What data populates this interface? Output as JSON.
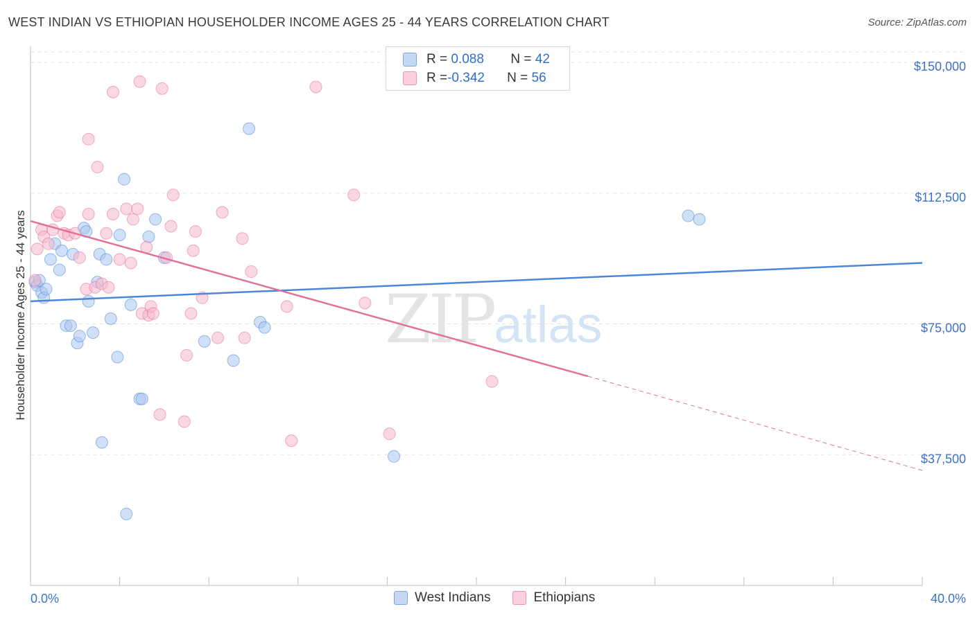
{
  "title": "WEST INDIAN VS ETHIOPIAN HOUSEHOLDER INCOME AGES 25 - 44 YEARS CORRELATION CHART",
  "source": "Source: ZipAtlas.com",
  "watermark": {
    "zip": "ZIP",
    "atlas": "atlas"
  },
  "legend": {
    "rows": [
      {
        "r_label": "R = ",
        "r_value": "0.088",
        "n_label": "N = ",
        "n_value": "42",
        "color": "#a9c7ef"
      },
      {
        "r_label": "R = ",
        "r_value": "-0.342",
        "n_label": "N = ",
        "n_value": "56",
        "color": "#f5b8cc"
      }
    ]
  },
  "bottom_legend": [
    "West Indians",
    "Ethiopians"
  ],
  "chart_data": {
    "type": "scatter",
    "ylabel": "Householder Income Ages 25 - 44 years",
    "x_tick_labels": [
      "0.0%",
      "40.0%"
    ],
    "y_tick_labels": [
      "$150,000",
      "$112,500",
      "$75,000",
      "$37,500"
    ],
    "y_ticks": [
      150000,
      112500,
      75000,
      37500
    ],
    "xlim": [
      0,
      40
    ],
    "ylim": [
      0,
      153000
    ],
    "grid": true,
    "series": [
      {
        "name": "West Indians",
        "color": "#4a86d8",
        "fill": "#a9c7ef",
        "trend": {
          "x": [
            0,
            40
          ],
          "y": [
            81500,
            92500
          ],
          "dashed_from": null
        },
        "points": [
          [
            0.2,
            87000
          ],
          [
            0.3,
            86000
          ],
          [
            0.4,
            87500
          ],
          [
            0.5,
            84000
          ],
          [
            0.6,
            82500
          ],
          [
            0.7,
            85000
          ],
          [
            0.9,
            93500
          ],
          [
            1.1,
            98000
          ],
          [
            1.3,
            90500
          ],
          [
            1.4,
            96000
          ],
          [
            1.6,
            74500
          ],
          [
            1.8,
            74500
          ],
          [
            1.9,
            95000
          ],
          [
            2.1,
            69500
          ],
          [
            2.2,
            71500
          ],
          [
            2.4,
            102500
          ],
          [
            2.5,
            101500
          ],
          [
            2.6,
            81500
          ],
          [
            2.8,
            72500
          ],
          [
            3.0,
            87000
          ],
          [
            3.1,
            95000
          ],
          [
            3.2,
            41000
          ],
          [
            3.4,
            93500
          ],
          [
            3.6,
            76500
          ],
          [
            3.9,
            65500
          ],
          [
            4.0,
            100500
          ],
          [
            4.2,
            116500
          ],
          [
            4.3,
            20500
          ],
          [
            4.5,
            80500
          ],
          [
            4.9,
            53500
          ],
          [
            5.0,
            53500
          ],
          [
            5.3,
            100000
          ],
          [
            5.6,
            105000
          ],
          [
            6.0,
            94000
          ],
          [
            7.8,
            70000
          ],
          [
            9.1,
            64500
          ],
          [
            9.8,
            131000
          ],
          [
            10.3,
            75500
          ],
          [
            10.5,
            74000
          ],
          [
            16.3,
            37000
          ],
          [
            29.5,
            106000
          ],
          [
            30.0,
            105000
          ]
        ]
      },
      {
        "name": "Ethiopians",
        "color": "#e0709a",
        "fill": "#f5b8cc",
        "trend": {
          "x": [
            0,
            25,
            40
          ],
          "y": [
            104500,
            60000,
            33000
          ],
          "dashed_from": 25
        },
        "points": [
          [
            0.2,
            87500
          ],
          [
            0.3,
            96500
          ],
          [
            0.5,
            102000
          ],
          [
            0.6,
            100000
          ],
          [
            0.8,
            98000
          ],
          [
            1.0,
            102000
          ],
          [
            1.2,
            106000
          ],
          [
            1.3,
            107000
          ],
          [
            1.5,
            101000
          ],
          [
            1.7,
            100500
          ],
          [
            2.0,
            101000
          ],
          [
            2.2,
            94000
          ],
          [
            2.5,
            85000
          ],
          [
            2.6,
            106500
          ],
          [
            2.6,
            128000
          ],
          [
            2.9,
            85500
          ],
          [
            3.0,
            120000
          ],
          [
            3.2,
            86500
          ],
          [
            3.4,
            101000
          ],
          [
            3.5,
            85500
          ],
          [
            3.7,
            106500
          ],
          [
            3.7,
            141500
          ],
          [
            4.0,
            93500
          ],
          [
            4.3,
            108000
          ],
          [
            4.5,
            92500
          ],
          [
            4.6,
            105000
          ],
          [
            4.8,
            108000
          ],
          [
            4.9,
            144500
          ],
          [
            5.0,
            78000
          ],
          [
            5.2,
            97000
          ],
          [
            5.3,
            77500
          ],
          [
            5.4,
            80000
          ],
          [
            5.5,
            78000
          ],
          [
            5.8,
            49000
          ],
          [
            5.9,
            142500
          ],
          [
            6.1,
            94000
          ],
          [
            6.3,
            103000
          ],
          [
            6.4,
            112000
          ],
          [
            6.9,
            47000
          ],
          [
            7.0,
            66000
          ],
          [
            7.3,
            96000
          ],
          [
            7.4,
            101500
          ],
          [
            7.7,
            82500
          ],
          [
            8.4,
            71000
          ],
          [
            8.6,
            107000
          ],
          [
            9.5,
            99500
          ],
          [
            9.6,
            71000
          ],
          [
            9.9,
            90000
          ],
          [
            11.5,
            80000
          ],
          [
            11.7,
            41500
          ],
          [
            12.8,
            143000
          ],
          [
            14.5,
            112000
          ],
          [
            15.0,
            81000
          ],
          [
            16.1,
            43500
          ],
          [
            20.7,
            58500
          ],
          [
            7.2,
            78000
          ]
        ]
      }
    ]
  }
}
